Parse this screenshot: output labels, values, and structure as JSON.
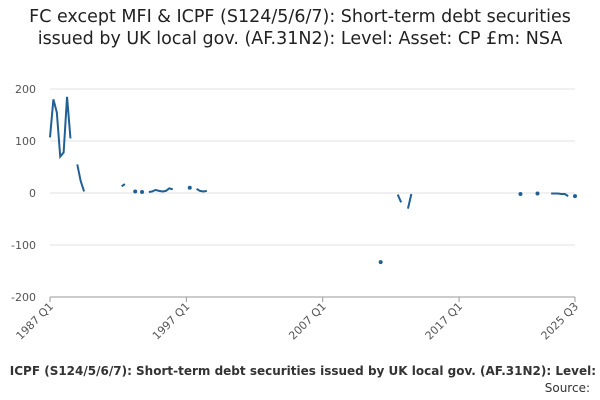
{
  "chart_data": {
    "type": "line",
    "title": "FC except MFI & ICPF (S124/5/6/7): Short-term debt securities issued by UK local gov. (AF.31N2): Level: Asset: CP £m: NSA",
    "subtitle": "ICPF (S124/5/6/7): Short-term debt securities issued by UK local gov. (AF.31N2): Level:",
    "source": "Source:",
    "color": "#206095",
    "grid": true,
    "xlim": [
      1987,
      2025.5
    ],
    "xticks": [
      {
        "value": 1987,
        "label": "1987 Q1"
      },
      {
        "value": 1997,
        "label": "1997 Q1"
      },
      {
        "value": 2007,
        "label": "2007 Q1"
      },
      {
        "value": 2017,
        "label": "2017 Q1"
      },
      {
        "value": 2025.5,
        "label": "2025 Q3"
      }
    ],
    "ylim": [
      -200,
      200
    ],
    "yticks": [
      -200,
      -100,
      0,
      100,
      200
    ],
    "x": [
      1987,
      1987.25,
      1987.5,
      1987.75,
      1988,
      1988.25,
      1988.5,
      1989,
      1989.25,
      1989.5,
      1992.25,
      1992.5,
      1993.25,
      1993.75,
      1994.25,
      1994.5,
      1994.75,
      1995,
      1995.25,
      1995.5,
      1995.75,
      1996,
      1997.25,
      1997.75,
      1998,
      1998.25,
      1998.5,
      2011.25,
      2012.5,
      2012.75,
      2013.25,
      2013.5,
      2021.5,
      2022.75,
      2023.75,
      2024,
      2024.25,
      2024.5,
      2024.75,
      2025,
      2025.5
    ],
    "values": [
      107,
      180,
      155,
      70,
      78,
      185,
      105,
      55,
      23,
      3,
      13,
      17,
      3,
      2,
      2,
      3,
      6,
      4,
      3,
      4,
      9,
      7,
      10,
      8,
      4,
      3,
      4,
      -133,
      -3,
      -18,
      -30,
      -2,
      -2,
      -1,
      -1,
      -1,
      -1,
      -2,
      -2,
      -6,
      -6
    ]
  }
}
